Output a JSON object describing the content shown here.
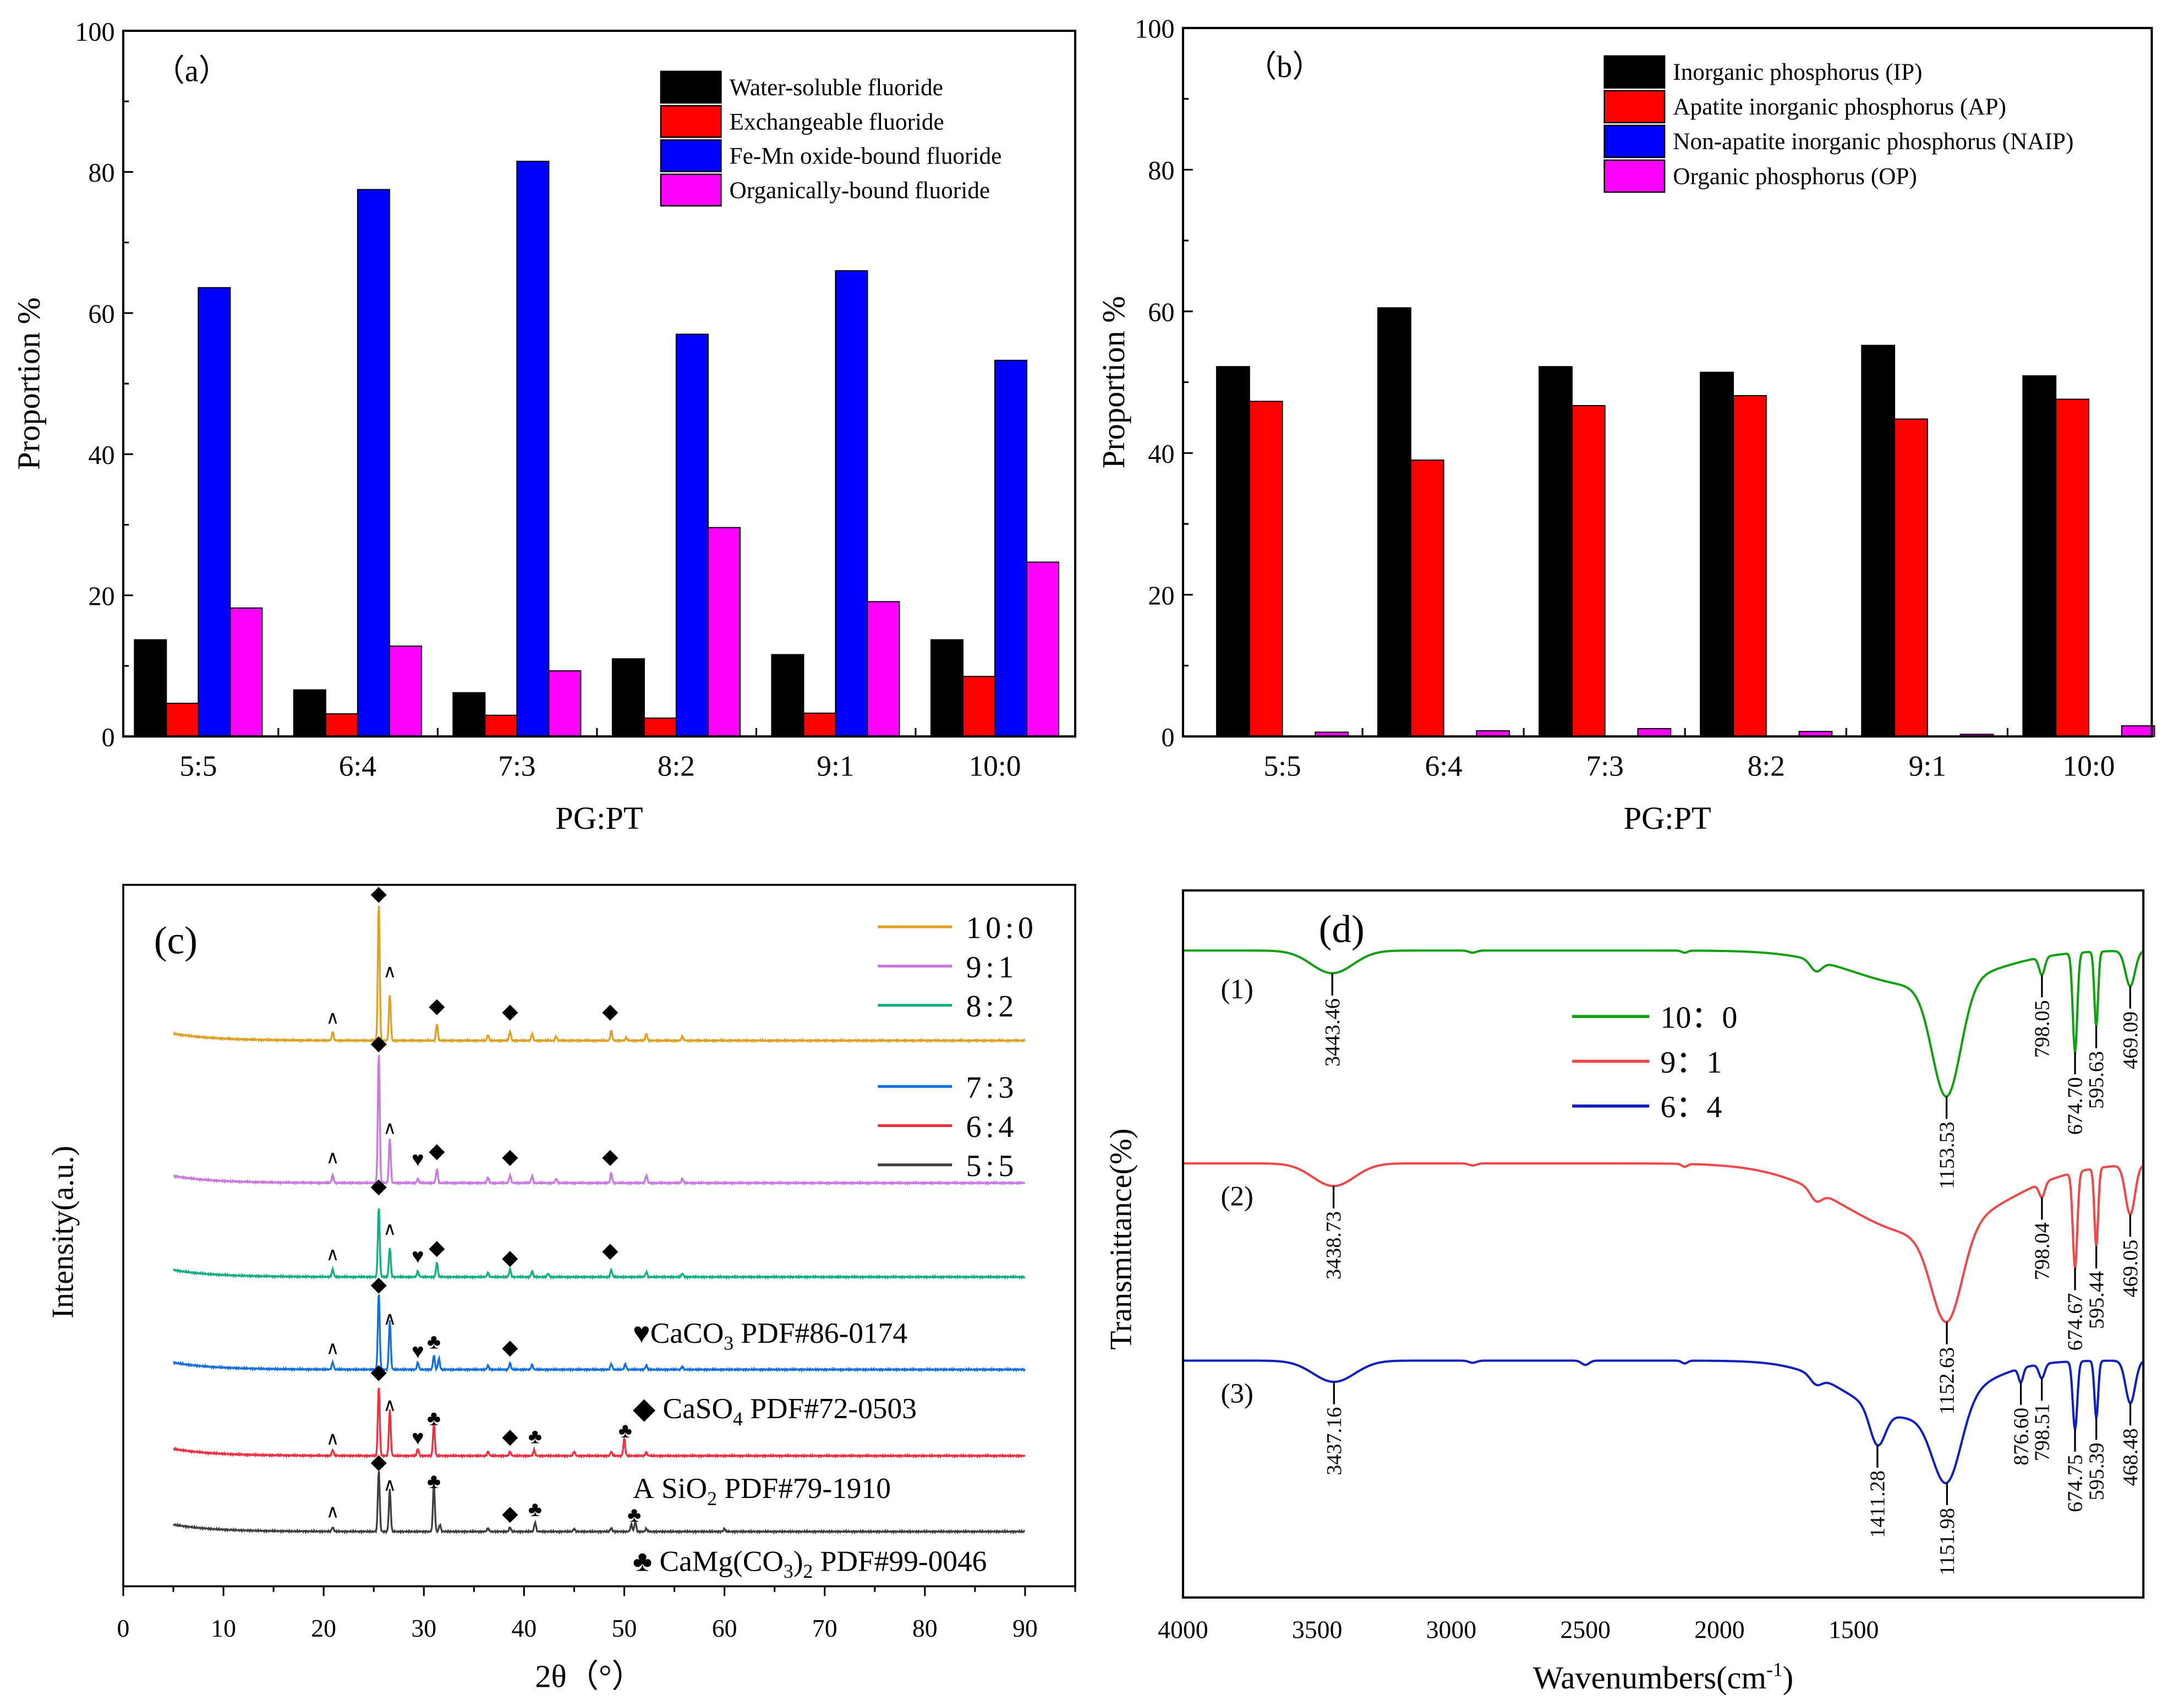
{
  "chart_data": [
    {
      "type": "bar",
      "panel_label": "（a）",
      "categories": [
        "5:5",
        "6:4",
        "7:3",
        "8:2",
        "9:1",
        "10:0"
      ],
      "series": [
        {
          "name": "Water-soluble fluoride",
          "color": "#000000",
          "values": [
            13.7,
            6.6,
            6.2,
            11.0,
            11.6,
            13.7
          ]
        },
        {
          "name": "Exchangeable fluoride",
          "color": "#ff0000",
          "values": [
            4.7,
            3.2,
            3.0,
            2.6,
            3.3,
            8.5
          ]
        },
        {
          "name": "Fe-Mn oxide-bound fluoride",
          "color": "#0000ff",
          "values": [
            63.6,
            77.5,
            81.5,
            57.0,
            66.0,
            53.3
          ]
        },
        {
          "name": "Organically-bound fluoride",
          "color": "#ff00ff",
          "values": [
            18.2,
            12.8,
            9.3,
            29.6,
            19.1,
            24.7
          ]
        }
      ],
      "xlabel": "PG:PT",
      "ylabel": "Proportion %",
      "ylim": [
        0,
        100
      ],
      "yticks": [
        "0",
        "20",
        "40",
        "60",
        "80",
        "100"
      ],
      "legend": "top-right"
    },
    {
      "type": "bar",
      "panel_label": "（b）",
      "categories": [
        "5:5",
        "6:4",
        "7:3",
        "8:2",
        "9:1",
        "10:0"
      ],
      "series": [
        {
          "name": "Inorganic phosphorus (IP)",
          "color": "#000000",
          "values": [
            52.2,
            60.5,
            52.2,
            51.4,
            55.2,
            50.9
          ]
        },
        {
          "name": "Apatite inorganic phosphorus (AP)",
          "color": "#ff0000",
          "values": [
            47.3,
            39.0,
            46.7,
            48.1,
            44.8,
            47.6
          ]
        },
        {
          "name": "Non-apatite inorganic phosphorus (NAIP)",
          "color": "#0000ff",
          "values": [
            0,
            0,
            0,
            0,
            0,
            0
          ]
        },
        {
          "name": "Organic phosphorus (OP)",
          "color": "#ff00ff",
          "values": [
            0.6,
            0.8,
            1.1,
            0.7,
            0.3,
            1.5
          ]
        }
      ],
      "xlabel": "PG:PT",
      "ylabel": "Proportion %",
      "ylim": [
        0,
        100
      ],
      "yticks": [
        "0",
        "20",
        "40",
        "60",
        "80",
        "100"
      ],
      "legend": "top-right"
    },
    {
      "type": "line",
      "panel_label": "(c)",
      "xlabel": "2θ（°）",
      "ylabel": "Intensity(a.u.)",
      "xlim": [
        0,
        95
      ],
      "ylim": [
        0,
        100
      ],
      "xticks": [
        "0",
        "10",
        "20",
        "30",
        "40",
        "50",
        "60",
        "70",
        "80",
        "90"
      ],
      "legend": "top-right",
      "series": [
        {
          "name": "10:0",
          "color": "#e0a020",
          "offset": 77.8,
          "peaks": [
            [
              20.9,
              1.2
            ],
            [
              25.5,
              19.6
            ],
            [
              26.6,
              6.5
            ],
            [
              31.3,
              2.4
            ],
            [
              36.4,
              0.8
            ],
            [
              38.6,
              1.3
            ],
            [
              40.8,
              1.0
            ],
            [
              43.2,
              0.6
            ],
            [
              48.7,
              1.4
            ],
            [
              50.2,
              0.4
            ],
            [
              52.2,
              1.0
            ],
            [
              55.8,
              0.6
            ]
          ],
          "markers": [
            [
              "∧",
              20.9,
              3.4
            ],
            [
              "◆",
              25.5,
              21
            ],
            [
              "∧",
              26.6,
              10
            ],
            [
              "◆",
              31.3,
              5
            ],
            [
              "◆",
              38.6,
              4.2
            ],
            [
              "◆",
              48.6,
              4.2
            ]
          ]
        },
        {
          "name": "9:1",
          "color": "#c878e0",
          "offset": 57.5,
          "peaks": [
            [
              20.9,
              1.1
            ],
            [
              25.5,
              18.6
            ],
            [
              26.6,
              6.4
            ],
            [
              29.4,
              0.6
            ],
            [
              31.3,
              2.0
            ],
            [
              36.4,
              0.8
            ],
            [
              38.6,
              1.1
            ],
            [
              40.8,
              1.0
            ],
            [
              43.2,
              0.6
            ],
            [
              48.7,
              1.4
            ],
            [
              52.2,
              1.1
            ],
            [
              55.8,
              0.6
            ]
          ],
          "markers": [
            [
              "∧",
              20.9,
              3.8
            ],
            [
              "◆",
              25.5,
              20
            ],
            [
              "∧",
              26.6,
              8
            ],
            [
              "♥",
              29.4,
              3.4
            ],
            [
              "◆",
              31.3,
              4.6
            ],
            [
              "◆",
              38.6,
              3.8
            ],
            [
              "◆",
              48.6,
              3.8
            ]
          ]
        },
        {
          "name": "8:2",
          "color": "#10b080",
          "offset": 44.1,
          "peaks": [
            [
              20.9,
              1.1
            ],
            [
              25.5,
              10
            ],
            [
              26.6,
              4.2
            ],
            [
              29.4,
              0.8
            ],
            [
              31.3,
              2.0
            ],
            [
              36.4,
              0.6
            ],
            [
              38.6,
              1.1
            ],
            [
              40.8,
              0.8
            ],
            [
              42.4,
              0.5
            ],
            [
              48.7,
              1.0
            ],
            [
              52.2,
              0.7
            ],
            [
              55.8,
              0.5
            ]
          ],
          "markers": [
            [
              "∧",
              20.9,
              3.4
            ],
            [
              "◆",
              25.5,
              13
            ],
            [
              "∧",
              26.6,
              7
            ],
            [
              "♥",
              29.4,
              3
            ],
            [
              "◆",
              31.3,
              4.2
            ],
            [
              "◆",
              38.6,
              2.8
            ],
            [
              "◆",
              48.6,
              3.8
            ]
          ]
        },
        {
          "name": "7:3",
          "color": "#1070e0",
          "offset": 30.9,
          "peaks": [
            [
              20.9,
              1.0
            ],
            [
              25.5,
              11
            ],
            [
              26.6,
              7
            ],
            [
              29.4,
              1.0
            ],
            [
              31.0,
              2.0
            ],
            [
              31.5,
              1.6
            ],
            [
              36.4,
              0.6
            ],
            [
              38.6,
              0.9
            ],
            [
              40.8,
              0.7
            ],
            [
              48.7,
              0.8
            ],
            [
              50.1,
              0.8
            ],
            [
              52.2,
              0.6
            ],
            [
              55.8,
              0.4
            ]
          ],
          "markers": [
            [
              "∧",
              20.9,
              3.2
            ],
            [
              "◆",
              25.5,
              12.2
            ],
            [
              "∧",
              26.6,
              7.4
            ],
            [
              "♥",
              29.4,
              2.6
            ],
            [
              "♣",
              31.0,
              4
            ],
            [
              "◆",
              38.6,
              3.2
            ]
          ]
        },
        {
          "name": "6:4",
          "color": "#f03040",
          "offset": 18.6,
          "peaks": [
            [
              20.9,
              0.8
            ],
            [
              25.5,
              10
            ],
            [
              26.6,
              6.5
            ],
            [
              29.4,
              1.0
            ],
            [
              31.0,
              4.5
            ],
            [
              36.4,
              0.6
            ],
            [
              38.6,
              0.6
            ],
            [
              41.0,
              0.8
            ],
            [
              45.0,
              0.6
            ],
            [
              48.7,
              0.6
            ],
            [
              50.0,
              2.5
            ],
            [
              52.2,
              0.5
            ]
          ],
          "markers": [
            [
              "∧",
              20.9,
              2.6
            ],
            [
              "◆",
              25.5,
              12
            ],
            [
              "∧",
              26.6,
              7.4
            ],
            [
              "♥",
              29.4,
              2.6
            ],
            [
              "♣",
              31.0,
              5.4
            ],
            [
              "◆",
              38.6,
              2.8
            ],
            [
              "♣",
              41.1,
              2.8
            ],
            [
              "♣",
              50.1,
              3.6
            ]
          ]
        },
        {
          "name": "5:5",
          "color": "#404040",
          "offset": 7.8,
          "peaks": [
            [
              20.9,
              0.6
            ],
            [
              25.5,
              8.8
            ],
            [
              26.6,
              6
            ],
            [
              31.0,
              7
            ],
            [
              31.6,
              1.0
            ],
            [
              36.4,
              0.5
            ],
            [
              38.6,
              0.6
            ],
            [
              41.1,
              1.3
            ],
            [
              45.0,
              0.4
            ],
            [
              48.7,
              0.5
            ],
            [
              50.7,
              1.0
            ],
            [
              51.1,
              1.4
            ],
            [
              52.2,
              0.4
            ],
            [
              60.0,
              0.4
            ]
          ],
          "markers": [
            [
              "∧",
              20.9,
              3
            ],
            [
              "◆",
              25.5,
              10
            ],
            [
              "∧",
              26.6,
              6.8
            ],
            [
              "♣",
              31.0,
              7.2
            ],
            [
              "◆",
              38.6,
              2.6
            ],
            [
              "♣",
              41.1,
              3.2
            ],
            [
              "♣",
              51.0,
              2.4
            ]
          ]
        }
      ],
      "phase_legend": [
        [
          {
            "t": "♥"
          },
          {
            "t": "CaCO"
          },
          {
            "t": "3",
            "sub": true
          },
          {
            "t": " PDF#86-0174"
          }
        ],
        [
          {
            "t": "◆"
          },
          {
            "t": " CaSO"
          },
          {
            "t": "4",
            "sub": true
          },
          {
            "t": " PDF#72-0503"
          }
        ],
        [
          {
            "t": "A"
          },
          {
            "t": " SiO"
          },
          {
            "t": "2",
            "sub": true
          },
          {
            "t": " PDF#79-1910"
          }
        ],
        [
          {
            "t": "♣"
          },
          {
            "t": " CaMg(CO"
          },
          {
            "t": "3",
            "sub": true
          },
          {
            "t": ")"
          },
          {
            "t": "2",
            "sub": true
          },
          {
            "t": " PDF#99-0046"
          }
        ]
      ]
    },
    {
      "type": "line",
      "panel_label": "(d)",
      "xlabel": "Wavenumbers(cm",
      "xlabel_sup": "-1",
      "xlabel_end": ")",
      "ylabel": "Transmittance(%)",
      "xlim": [
        4000,
        420
      ],
      "ylim": [
        0,
        100
      ],
      "xticks": [
        "4000",
        "3500",
        "3000",
        "2500",
        "2000",
        "1500"
      ],
      "legend": "top-center",
      "series": [
        {
          "name": "10：0",
          "curve_label": "(1)",
          "color": "#10a010",
          "offset": 91.5,
          "bands": [
            [
              3443.46,
              3.2,
              110
            ],
            [
              2920,
              0.3,
              20
            ],
            [
              2130,
              0.3,
              15
            ],
            [
              1640,
              1.5,
              30
            ],
            [
              1250,
              5,
              350
            ],
            [
              1153.53,
              16,
              75
            ],
            [
              798.05,
              2.5,
              15
            ],
            [
              674.7,
              14,
              12
            ],
            [
              595.63,
              10.5,
              10
            ],
            [
              469.09,
              5,
              25
            ]
          ],
          "labels": [
            "3443.46",
            "1153.53",
            "798.05",
            "674.70",
            "595.63",
            "469.09"
          ]
        },
        {
          "name": "9：1",
          "curve_label": "(2)",
          "color": "#f04848",
          "offset": 61.4,
          "bands": [
            [
              3438.73,
              3.2,
              110
            ],
            [
              2920,
              0.3,
              20
            ],
            [
              2130,
              0.4,
              15
            ],
            [
              1640,
              1.5,
              30
            ],
            [
              1250,
              10,
              400
            ],
            [
              1152.63,
              13,
              80
            ],
            [
              798.04,
              2,
              15
            ],
            [
              674.67,
              13.5,
              12
            ],
            [
              595.44,
              11,
              10
            ],
            [
              469.05,
              7,
              25
            ]
          ],
          "labels": [
            "3438.73",
            "1152.63",
            "798.04",
            "674.67",
            "595.44",
            "469.05"
          ]
        },
        {
          "name": "6：4",
          "curve_label": "(3)",
          "color": "#1020c0",
          "offset": 33.5,
          "bands": [
            [
              3437.16,
              3,
              110
            ],
            [
              2920,
              0.3,
              20
            ],
            [
              2500,
              0.6,
              20
            ],
            [
              2130,
              0.4,
              15
            ],
            [
              1640,
              1.2,
              30
            ],
            [
              1300,
              8,
              300
            ],
            [
              1411.28,
              5,
              40
            ],
            [
              1151.98,
              11,
              75
            ],
            [
              876.6,
              2,
              12
            ],
            [
              798.51,
              2,
              15
            ],
            [
              674.75,
              9.6,
              12
            ],
            [
              595.39,
              8,
              10
            ],
            [
              468.48,
              6,
              25
            ]
          ],
          "labels": [
            "3437.16",
            "1411.28",
            "1151.98",
            "876.60",
            "798.51",
            "674.75",
            "595.39",
            "468.48"
          ]
        }
      ]
    }
  ]
}
